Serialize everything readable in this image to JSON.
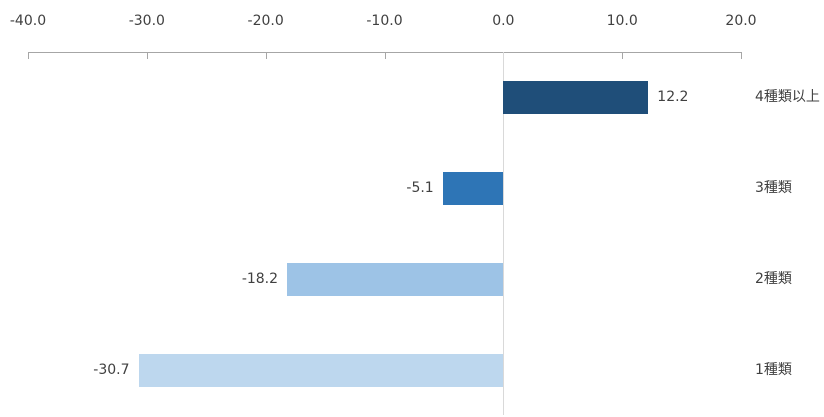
{
  "chart_data": {
    "type": "bar",
    "orientation": "horizontal",
    "title": "",
    "xlabel": "",
    "ylabel": "",
    "legend": null,
    "grid": "zero-line-only",
    "axis_position": "top",
    "categories": [
      "4種類以上",
      "3種類",
      "2種類",
      "1種類"
    ],
    "values": [
      12.2,
      -5.1,
      -18.2,
      -30.7
    ],
    "value_labels": [
      "12.2",
      "-5.1",
      "-18.2",
      "-30.7"
    ],
    "bar_colors": [
      "#1f4e79",
      "#2e75b6",
      "#9dc3e6",
      "#bdd7ee"
    ],
    "xlim": [
      -40,
      20
    ],
    "x_ticks": [
      -40,
      -30,
      -20,
      -10,
      0,
      10,
      20
    ],
    "x_tick_labels": [
      "-40.0",
      "-30.0",
      "-20.0",
      "-10.0",
      "0.0",
      "10.0",
      "20.0"
    ],
    "colors": {
      "axis_line": "#a6a6a6",
      "zero_line": "#d9d9d9",
      "text": "#404040",
      "background": "#ffffff"
    }
  }
}
